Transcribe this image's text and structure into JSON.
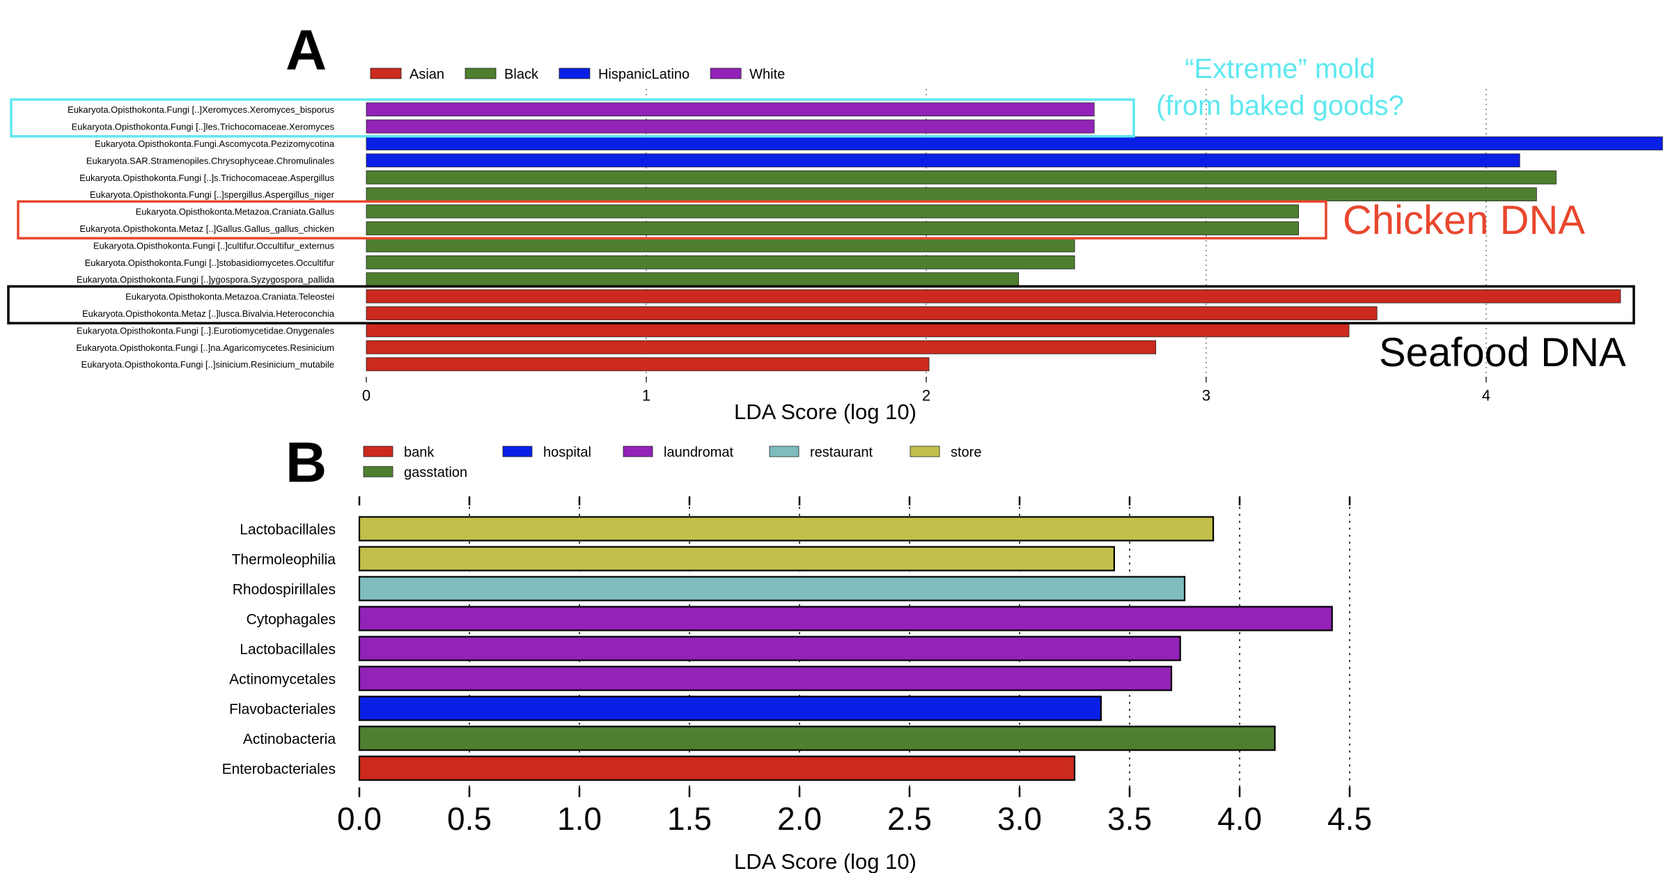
{
  "chart_data": [
    {
      "panel": "A",
      "type": "bar",
      "orientation": "horizontal",
      "legend": {
        "placement": "top",
        "entries": [
          {
            "label": "Asian",
            "color": "#cc2a1e"
          },
          {
            "label": "Black",
            "color": "#4e7f2f"
          },
          {
            "label": "HispanicLatino",
            "color": "#0a1fe6"
          },
          {
            "label": "White",
            "color": "#9222b8"
          }
        ]
      },
      "categories": [
        "Eukaryota.Opisthokonta.Fungi [..]Xeromyces.Xeromyces_bisporus",
        "Eukaryota.Opisthokonta.Fungi [..]les.Trichocomaceae.Xeromyces",
        "Eukaryota.Opisthokonta.Fungi.Ascomycota.Pezizomycotina",
        "Eukaryota.SAR.Stramenopiles.Chrysophyceae.Chromulinales",
        "Eukaryota.Opisthokonta.Fungi [..]s.Trichocomaceae.Aspergillus",
        "Eukaryota.Opisthokonta.Fungi [..]spergillus.Aspergillus_niger",
        "Eukaryota.Opisthokonta.Metazoa.Craniata.Gallus",
        "Eukaryota.Opisthokonta.Metaz [..]Gallus.Gallus_gallus_chicken",
        "Eukaryota.Opisthokonta.Fungi [..]cultifur.Occultifur_externus",
        "Eukaryota.Opisthokonta.Fungi [..]stobasidiomycetes.Occultifur",
        "Eukaryota.Opisthokonta.Fungi [..]ygospora.Syzygospora_pallida",
        "Eukaryota.Opisthokonta.Metazoa.Craniata.Teleostei",
        "Eukaryota.Opisthokonta.Metaz [..]lusca.Bivalvia.Heteroconchia",
        "Eukaryota.Opisthokonta.Fungi [..].Eurotiomycetidae.Onygenales",
        "Eukaryota.Opisthokonta.Fungi [..]na.Agaricomycetes.Resinicium",
        "Eukaryota.Opisthokonta.Fungi [..]sinicium.Resinicium_mutabile"
      ],
      "values": [
        2.6,
        2.6,
        4.63,
        4.12,
        4.25,
        4.18,
        3.33,
        3.33,
        2.53,
        2.53,
        2.33,
        4.48,
        3.61,
        3.51,
        2.82,
        2.01
      ],
      "groups": [
        "White",
        "White",
        "HispanicLatino",
        "HispanicLatino",
        "Black",
        "Black",
        "Black",
        "Black",
        "Black",
        "Black",
        "Black",
        "Asian",
        "Asian",
        "Asian",
        "Asian",
        "Asian"
      ],
      "xticks": [
        "0",
        "1",
        "2",
        "3",
        "4"
      ],
      "xlim": [
        0,
        4.65
      ],
      "xlabel": "LDA Score (log 10)",
      "grid": "vertical dotted",
      "annotations": [
        {
          "text": "“Extreme” mold",
          "color": "#5ee8ef",
          "box_rows": [
            0,
            1
          ]
        },
        {
          "text": "(from baked goods?",
          "color": "#5ee8ef"
        },
        {
          "text": "Chicken DNA",
          "color": "#e8472e",
          "box_rows": [
            6,
            7
          ]
        },
        {
          "text": "Seafood DNA",
          "color": "#000000",
          "box_rows": [
            11,
            12
          ]
        }
      ]
    },
    {
      "panel": "B",
      "type": "bar",
      "orientation": "horizontal",
      "legend": {
        "placement": "top",
        "entries": [
          {
            "label": "bank",
            "color": "#cc2a1e"
          },
          {
            "label": "hospital",
            "color": "#0a1fe6"
          },
          {
            "label": "laundromat",
            "color": "#9222b8"
          },
          {
            "label": "restaurant",
            "color": "#7fbcbf"
          },
          {
            "label": "store",
            "color": "#c2c04a"
          },
          {
            "label": "gasstation",
            "color": "#4e7f2f"
          }
        ]
      },
      "categories": [
        "Lactobacillales",
        "Thermoleophilia",
        "Rhodospirillales",
        "Cytophagales",
        "Lactobacillales",
        "Actinomycetales",
        "Flavobacteriales",
        "Actinobacteria",
        "Enterobacteriales"
      ],
      "values": [
        3.88,
        3.43,
        3.75,
        4.42,
        3.73,
        3.69,
        3.37,
        4.16,
        3.25
      ],
      "groups": [
        "store",
        "store",
        "restaurant",
        "laundromat",
        "laundromat",
        "laundromat",
        "hospital",
        "gasstation",
        "bank"
      ],
      "xticks": [
        "0.0",
        "0.5",
        "1.0",
        "1.5",
        "2.0",
        "2.5",
        "3.0",
        "3.5",
        "4.0",
        "4.5"
      ],
      "xlim": [
        0,
        4.5
      ],
      "xlabel": "LDA Score (log 10)",
      "grid": "vertical dotted"
    }
  ]
}
